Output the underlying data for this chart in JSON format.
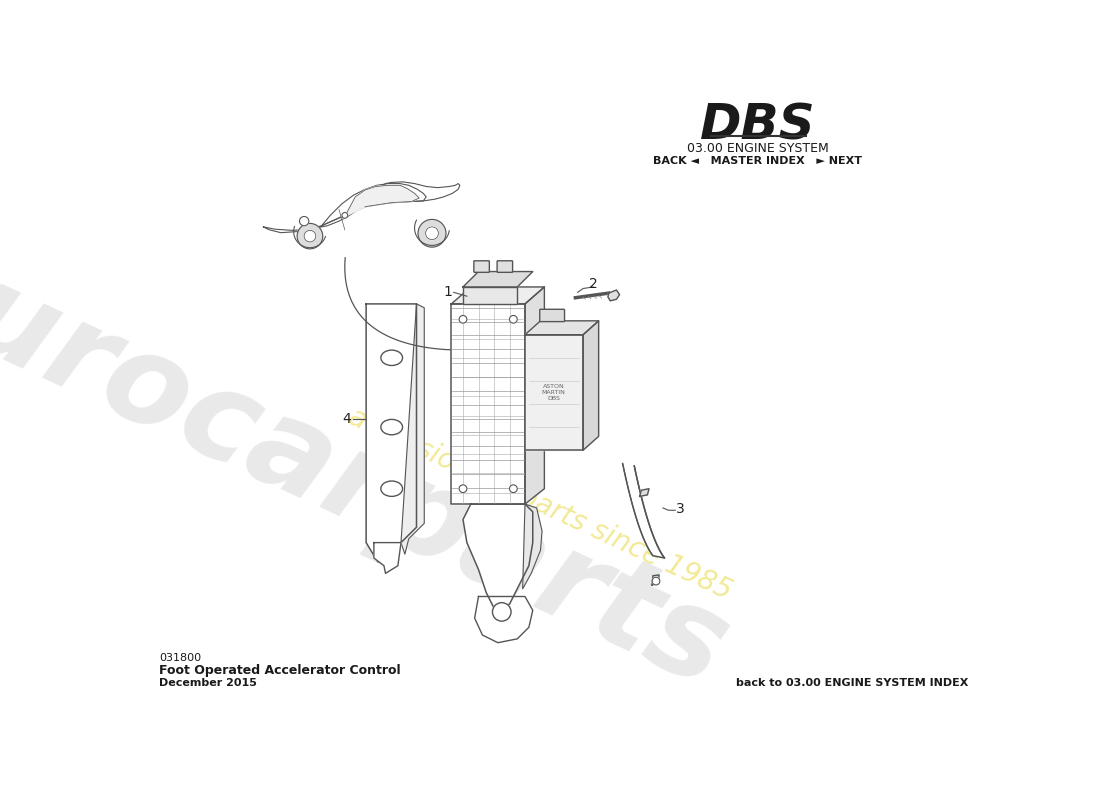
{
  "title_model": "DBS",
  "title_system": "03.00 ENGINE SYSTEM",
  "nav_text": "BACK ◄   MASTER INDEX   ► NEXT",
  "part_number": "031800",
  "part_name": "Foot Operated Accelerator Control",
  "date": "December 2015",
  "back_link": "back to 03.00 ENGINE SYSTEM INDEX",
  "bg_color": "#ffffff",
  "watermark_text": "eurocarparts",
  "watermark_slogan": "a passion for parts since 1985",
  "line_color": "#555555",
  "label_color": "#222222"
}
